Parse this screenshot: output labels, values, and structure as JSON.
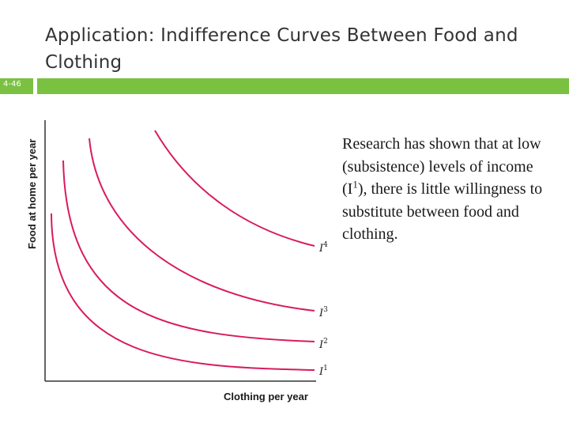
{
  "slide": {
    "title": "Application: Indifference Curves Between Food and Clothing",
    "number": "4-46",
    "accent_color": "#7ac142"
  },
  "graph": {
    "ylabel": "Food at home per year",
    "xlabel": "Clothing per year",
    "curve_color": "#d81b60",
    "curves": [
      {
        "label": "I",
        "sup": "4"
      },
      {
        "label": "I",
        "sup": "3"
      },
      {
        "label": "I",
        "sup": "2"
      },
      {
        "label": "I",
        "sup": "1"
      }
    ]
  },
  "body": {
    "line1": "Research has shown that at low (subsistence) levels of income (I",
    "sup": "1",
    "line2": "), there is little willingness to substitute between food and clothing."
  }
}
